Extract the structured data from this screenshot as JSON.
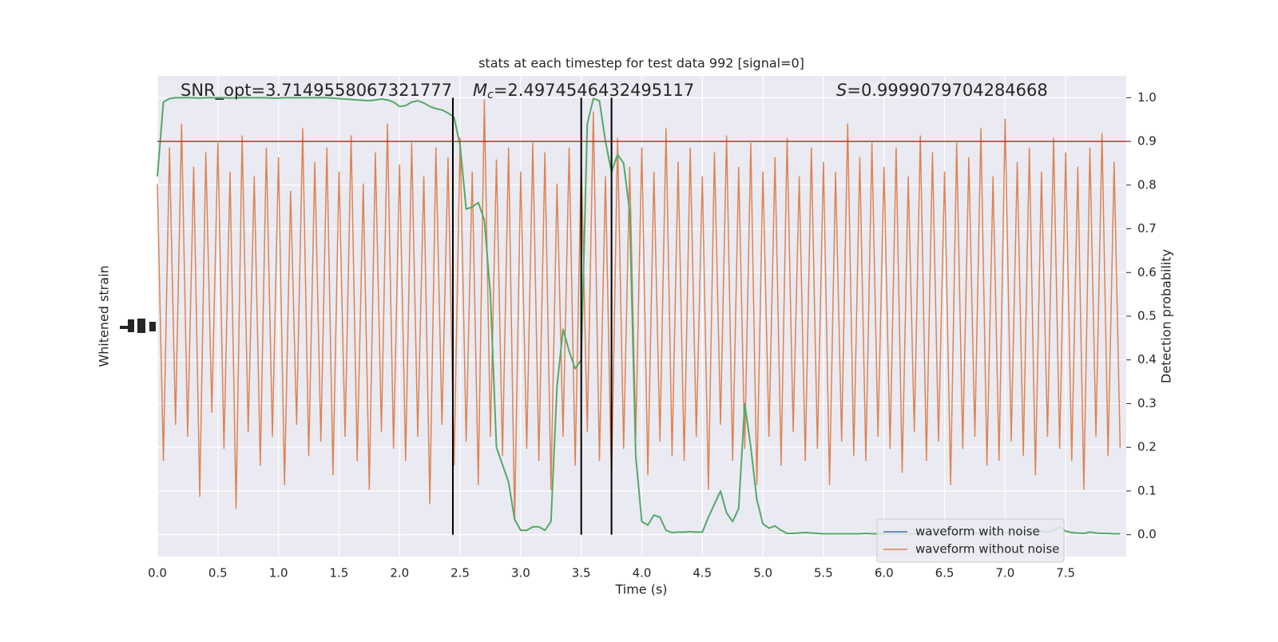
{
  "chart_data": {
    "type": "line",
    "title": "stats at each timestep for test data 992 [signal=0]",
    "xlabel": "Time (s)",
    "ylabel": "Whitened strain",
    "y2label": "Detection probability",
    "annotations": [
      {
        "text": "SNR_opt=3.7149558067321777"
      },
      {
        "symbol": "M",
        "subscript": "c",
        "text": "=2.4974546432495117"
      },
      {
        "symbol": "S",
        "text": "=0.9999079704284668"
      }
    ],
    "x": [
      0,
      0.05,
      0.1,
      0.15,
      0.2,
      0.25,
      0.3,
      0.35,
      0.4,
      0.45,
      0.5,
      0.55,
      0.6,
      0.65,
      0.7,
      0.75,
      0.8,
      0.85,
      0.9,
      0.95,
      1,
      1.05,
      1.1,
      1.15,
      1.2,
      1.25,
      1.3,
      1.35,
      1.4,
      1.45,
      1.5,
      1.55,
      1.6,
      1.65,
      1.7,
      1.75,
      1.8,
      1.85,
      1.9,
      1.95,
      2,
      2.05,
      2.1,
      2.15,
      2.2,
      2.25,
      2.3,
      2.35,
      2.4,
      2.45,
      2.5,
      2.55,
      2.6,
      2.65,
      2.7,
      2.75,
      2.8,
      2.85,
      2.9,
      2.95,
      3,
      3.05,
      3.1,
      3.15,
      3.2,
      3.25,
      3.3,
      3.35,
      3.4,
      3.45,
      3.5,
      3.55,
      3.6,
      3.65,
      3.7,
      3.75,
      3.8,
      3.85,
      3.9,
      3.95,
      4,
      4.05,
      4.1,
      4.15,
      4.2,
      4.25,
      4.3,
      4.35,
      4.4,
      4.45,
      4.5,
      4.55,
      4.6,
      4.65,
      4.7,
      4.75,
      4.8,
      4.85,
      4.9,
      4.95,
      5,
      5.05,
      5.1,
      5.15,
      5.2,
      5.25,
      5.3,
      5.35,
      5.4,
      5.45,
      5.5,
      5.55,
      5.6,
      5.65,
      5.7,
      5.75,
      5.8,
      5.85,
      5.9,
      5.95,
      6,
      6.05,
      6.1,
      6.15,
      6.2,
      6.25,
      6.3,
      6.35,
      6.4,
      6.45,
      6.5,
      6.55,
      6.6,
      6.65,
      6.7,
      6.75,
      6.8,
      6.85,
      6.9,
      6.95,
      7,
      7.05,
      7.1,
      7.15,
      7.2,
      7.25,
      7.3,
      7.35,
      7.4,
      7.45,
      7.5,
      7.55,
      7.6,
      7.65,
      7.7,
      7.75,
      7.8,
      7.85,
      7.9,
      7.95
    ],
    "series": [
      {
        "name": "waveform with noise",
        "color": "#4c72b0"
      },
      {
        "name": "waveform without noise",
        "color": "#dd8452",
        "values": [
          0.55,
          -0.6,
          0.7,
          -0.45,
          0.8,
          -0.5,
          0.62,
          -0.75,
          0.68,
          -0.4,
          0.72,
          -0.55,
          0.6,
          -0.8,
          0.75,
          -0.48,
          0.58,
          -0.62,
          0.7,
          -0.5,
          0.66,
          -0.7,
          0.52,
          -0.45,
          0.78,
          -0.58,
          0.64,
          -0.52,
          0.7,
          -0.66,
          0.6,
          -0.5,
          0.75,
          -0.6,
          0.55,
          -0.72,
          0.68,
          -0.48,
          0.8,
          -0.55,
          0.63,
          -0.6,
          0.72,
          -0.5,
          0.58,
          -0.78,
          0.7,
          -0.45,
          0.66,
          -0.62,
          0.74,
          -0.52,
          0.6,
          -0.7,
          0.9,
          -0.5,
          0.65,
          -0.58,
          0.7,
          -0.85,
          0.6,
          -0.55,
          0.72,
          -0.6,
          0.68,
          -0.72,
          0.55,
          -0.5,
          0.7,
          -0.62,
          0.66,
          -0.48,
          0.85,
          -0.6,
          0.58,
          -0.7,
          0.74,
          -0.55,
          0.62,
          -0.5,
          0.7,
          -0.66,
          0.6,
          -0.52,
          0.78,
          -0.58,
          0.64,
          -0.6,
          0.7,
          -0.5,
          0.58,
          -0.72,
          0.68,
          -0.45,
          0.75,
          -0.6,
          0.62,
          -0.55,
          0.72,
          -0.7,
          0.6,
          -0.5,
          0.66,
          -0.62,
          0.74,
          -0.48,
          0.58,
          -0.6,
          0.7,
          -0.55,
          0.64,
          -0.7,
          0.6,
          -0.52,
          0.8,
          -0.58,
          0.66,
          -0.6,
          0.72,
          -0.5,
          0.62,
          -0.55,
          0.7,
          -0.65,
          0.58,
          -0.48,
          0.75,
          -0.6,
          0.68,
          -0.52,
          0.6,
          -0.7,
          0.72,
          -0.55,
          0.66,
          -0.5,
          0.78,
          -0.62,
          0.58,
          -0.6,
          0.82,
          -0.52,
          0.64,
          -0.58,
          0.7,
          -0.66,
          0.6,
          -0.5,
          0.74,
          -0.55,
          0.68,
          -0.6,
          0.62,
          -0.72,
          0.7,
          -0.5,
          0.76,
          -0.58,
          0.64,
          -0.55
        ]
      },
      {
        "color": "#55a868",
        "axis": "y2",
        "values": [
          0.82,
          0.99,
          0.998,
          1.0,
          1.0,
          1.0,
          1.0,
          0.999,
          1.0,
          1.0,
          1.0,
          1.0,
          0.999,
          1.0,
          1.0,
          1.0,
          1.0,
          1.0,
          1.0,
          0.999,
          0.999,
          1.0,
          1.0,
          1.0,
          1.0,
          1.0,
          1.0,
          1.0,
          1.0,
          0.999,
          0.998,
          0.997,
          0.996,
          0.995,
          0.994,
          0.993,
          0.995,
          0.997,
          0.995,
          0.99,
          0.98,
          0.982,
          0.99,
          0.993,
          0.988,
          0.98,
          0.975,
          0.972,
          0.965,
          0.955,
          0.89,
          0.745,
          0.75,
          0.76,
          0.72,
          0.55,
          0.2,
          0.16,
          0.12,
          0.035,
          0.01,
          0.01,
          0.018,
          0.018,
          0.01,
          0.03,
          0.34,
          0.47,
          0.42,
          0.38,
          0.4,
          0.94,
          0.998,
          0.993,
          0.9,
          0.83,
          0.87,
          0.85,
          0.74,
          0.18,
          0.03,
          0.022,
          0.045,
          0.04,
          0.01,
          0.005,
          0.006,
          0.006,
          0.007,
          0.006,
          0.006,
          0.04,
          0.07,
          0.1,
          0.05,
          0.03,
          0.06,
          0.3,
          0.2,
          0.08,
          0.025,
          0.015,
          0.02,
          0.01,
          0.003,
          0.003,
          0.004,
          0.005,
          0.004,
          0.003,
          0.002,
          0.002,
          0.002,
          0.002,
          0.002,
          0.002,
          0.002,
          0.003,
          0.002,
          0.002,
          0.002,
          0.002,
          0.002,
          0.002,
          0.002,
          0.002,
          0.003,
          0.002,
          0.002,
          0.002,
          0.002,
          0.002,
          0.003,
          0.002,
          0.002,
          0.003,
          0.004,
          0.003,
          0.003,
          0.004,
          0.005,
          0.004,
          0.005,
          0.006,
          0.008,
          0.01,
          0.008,
          0.006,
          0.01,
          0.018,
          0.008,
          0.005,
          0.004,
          0.003,
          0.006,
          0.004,
          0.003,
          0.003,
          0.002,
          0.002
        ]
      }
    ],
    "threshold": 0.9,
    "threshold_color": "#b5352f",
    "vlines": [
      2.44,
      3.5,
      3.75
    ],
    "vline_range": [
      0,
      1
    ],
    "vline_color": "#000000",
    "xlim": [
      0,
      8
    ],
    "xticks": [
      {
        "value": 0,
        "label": "0.0"
      },
      {
        "value": 0.5,
        "label": "0.5"
      },
      {
        "value": 1,
        "label": "1.0"
      },
      {
        "value": 1.5,
        "label": "1.5"
      },
      {
        "value": 2,
        "label": "2.0"
      },
      {
        "value": 2.5,
        "label": "2.5"
      },
      {
        "value": 3,
        "label": "3.0"
      },
      {
        "value": 3.5,
        "label": "3.5"
      },
      {
        "value": 4,
        "label": "4.0"
      },
      {
        "value": 4.5,
        "label": "4.5"
      },
      {
        "value": 5,
        "label": "5.0"
      },
      {
        "value": 5.5,
        "label": "5.5"
      },
      {
        "value": 6,
        "label": "6.0"
      },
      {
        "value": 6.5,
        "label": "6.5"
      },
      {
        "value": 7,
        "label": "7.0"
      },
      {
        "value": 7.5,
        "label": "7.5"
      }
    ],
    "ylim": [
      -1,
      1
    ],
    "y2lim": [
      -0.05,
      1.05
    ],
    "y2ticks": [
      {
        "value": 0,
        "label": "0.0"
      },
      0.1,
      0.2,
      0.3,
      0.4,
      0.5,
      0.6,
      0.7,
      0.8,
      0.9,
      {
        "value": 1,
        "label": "1.0"
      }
    ],
    "grid": true,
    "legend": "lower right"
  }
}
